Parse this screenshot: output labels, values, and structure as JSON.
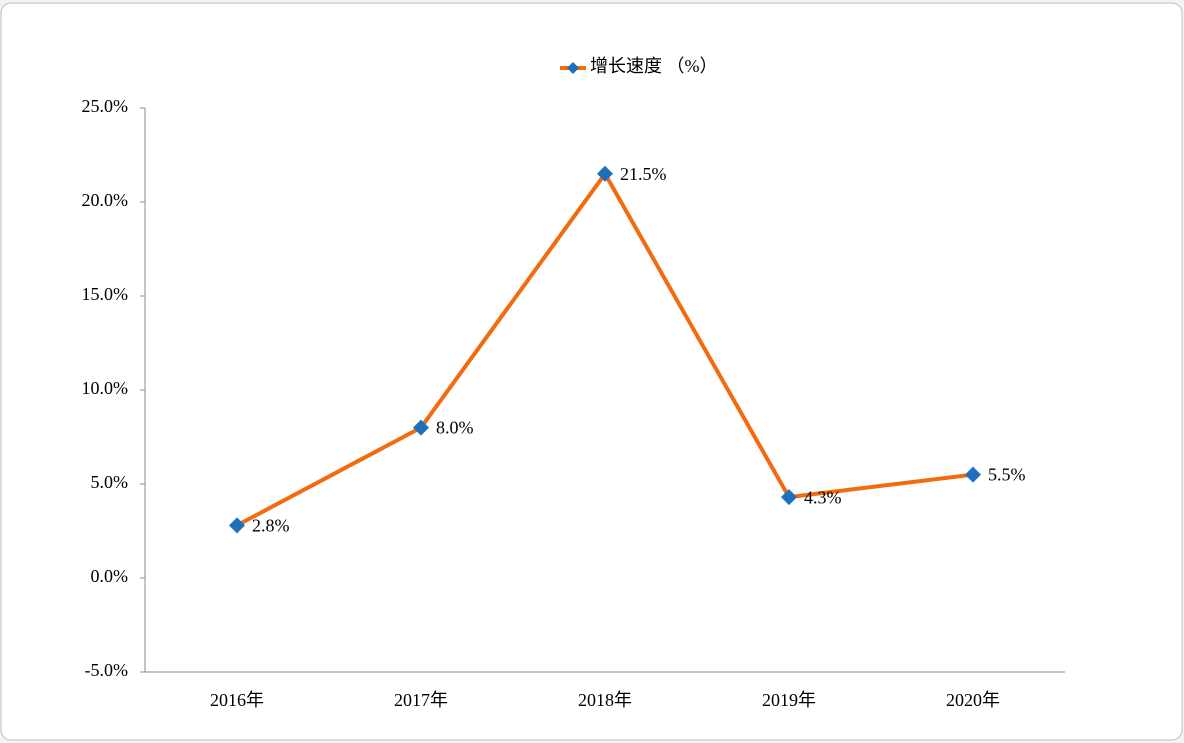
{
  "chart_data": {
    "type": "line",
    "categories": [
      "2016年",
      "2017年",
      "2018年",
      "2019年",
      "2020年"
    ],
    "series": [
      {
        "name": "增长速度 （%）",
        "color": "#f26b0f",
        "marker_color": "#1f6fbf",
        "values": [
          2.8,
          8.0,
          21.5,
          4.3,
          5.5
        ],
        "value_labels": [
          "2.8%",
          "8.0%",
          "21.5%",
          "4.3%",
          "5.5%"
        ]
      }
    ],
    "ylim": [
      -5,
      25
    ],
    "yticks": [
      {
        "value": -5,
        "label": "-5.0%"
      },
      {
        "value": 0,
        "label": "0.0%"
      },
      {
        "value": 5,
        "label": "5.0%"
      },
      {
        "value": 10,
        "label": "10.0%"
      },
      {
        "value": 15,
        "label": "15.0%"
      },
      {
        "value": 20,
        "label": "20.0%"
      },
      {
        "value": 25,
        "label": "25.0%"
      }
    ],
    "legend": "top"
  }
}
